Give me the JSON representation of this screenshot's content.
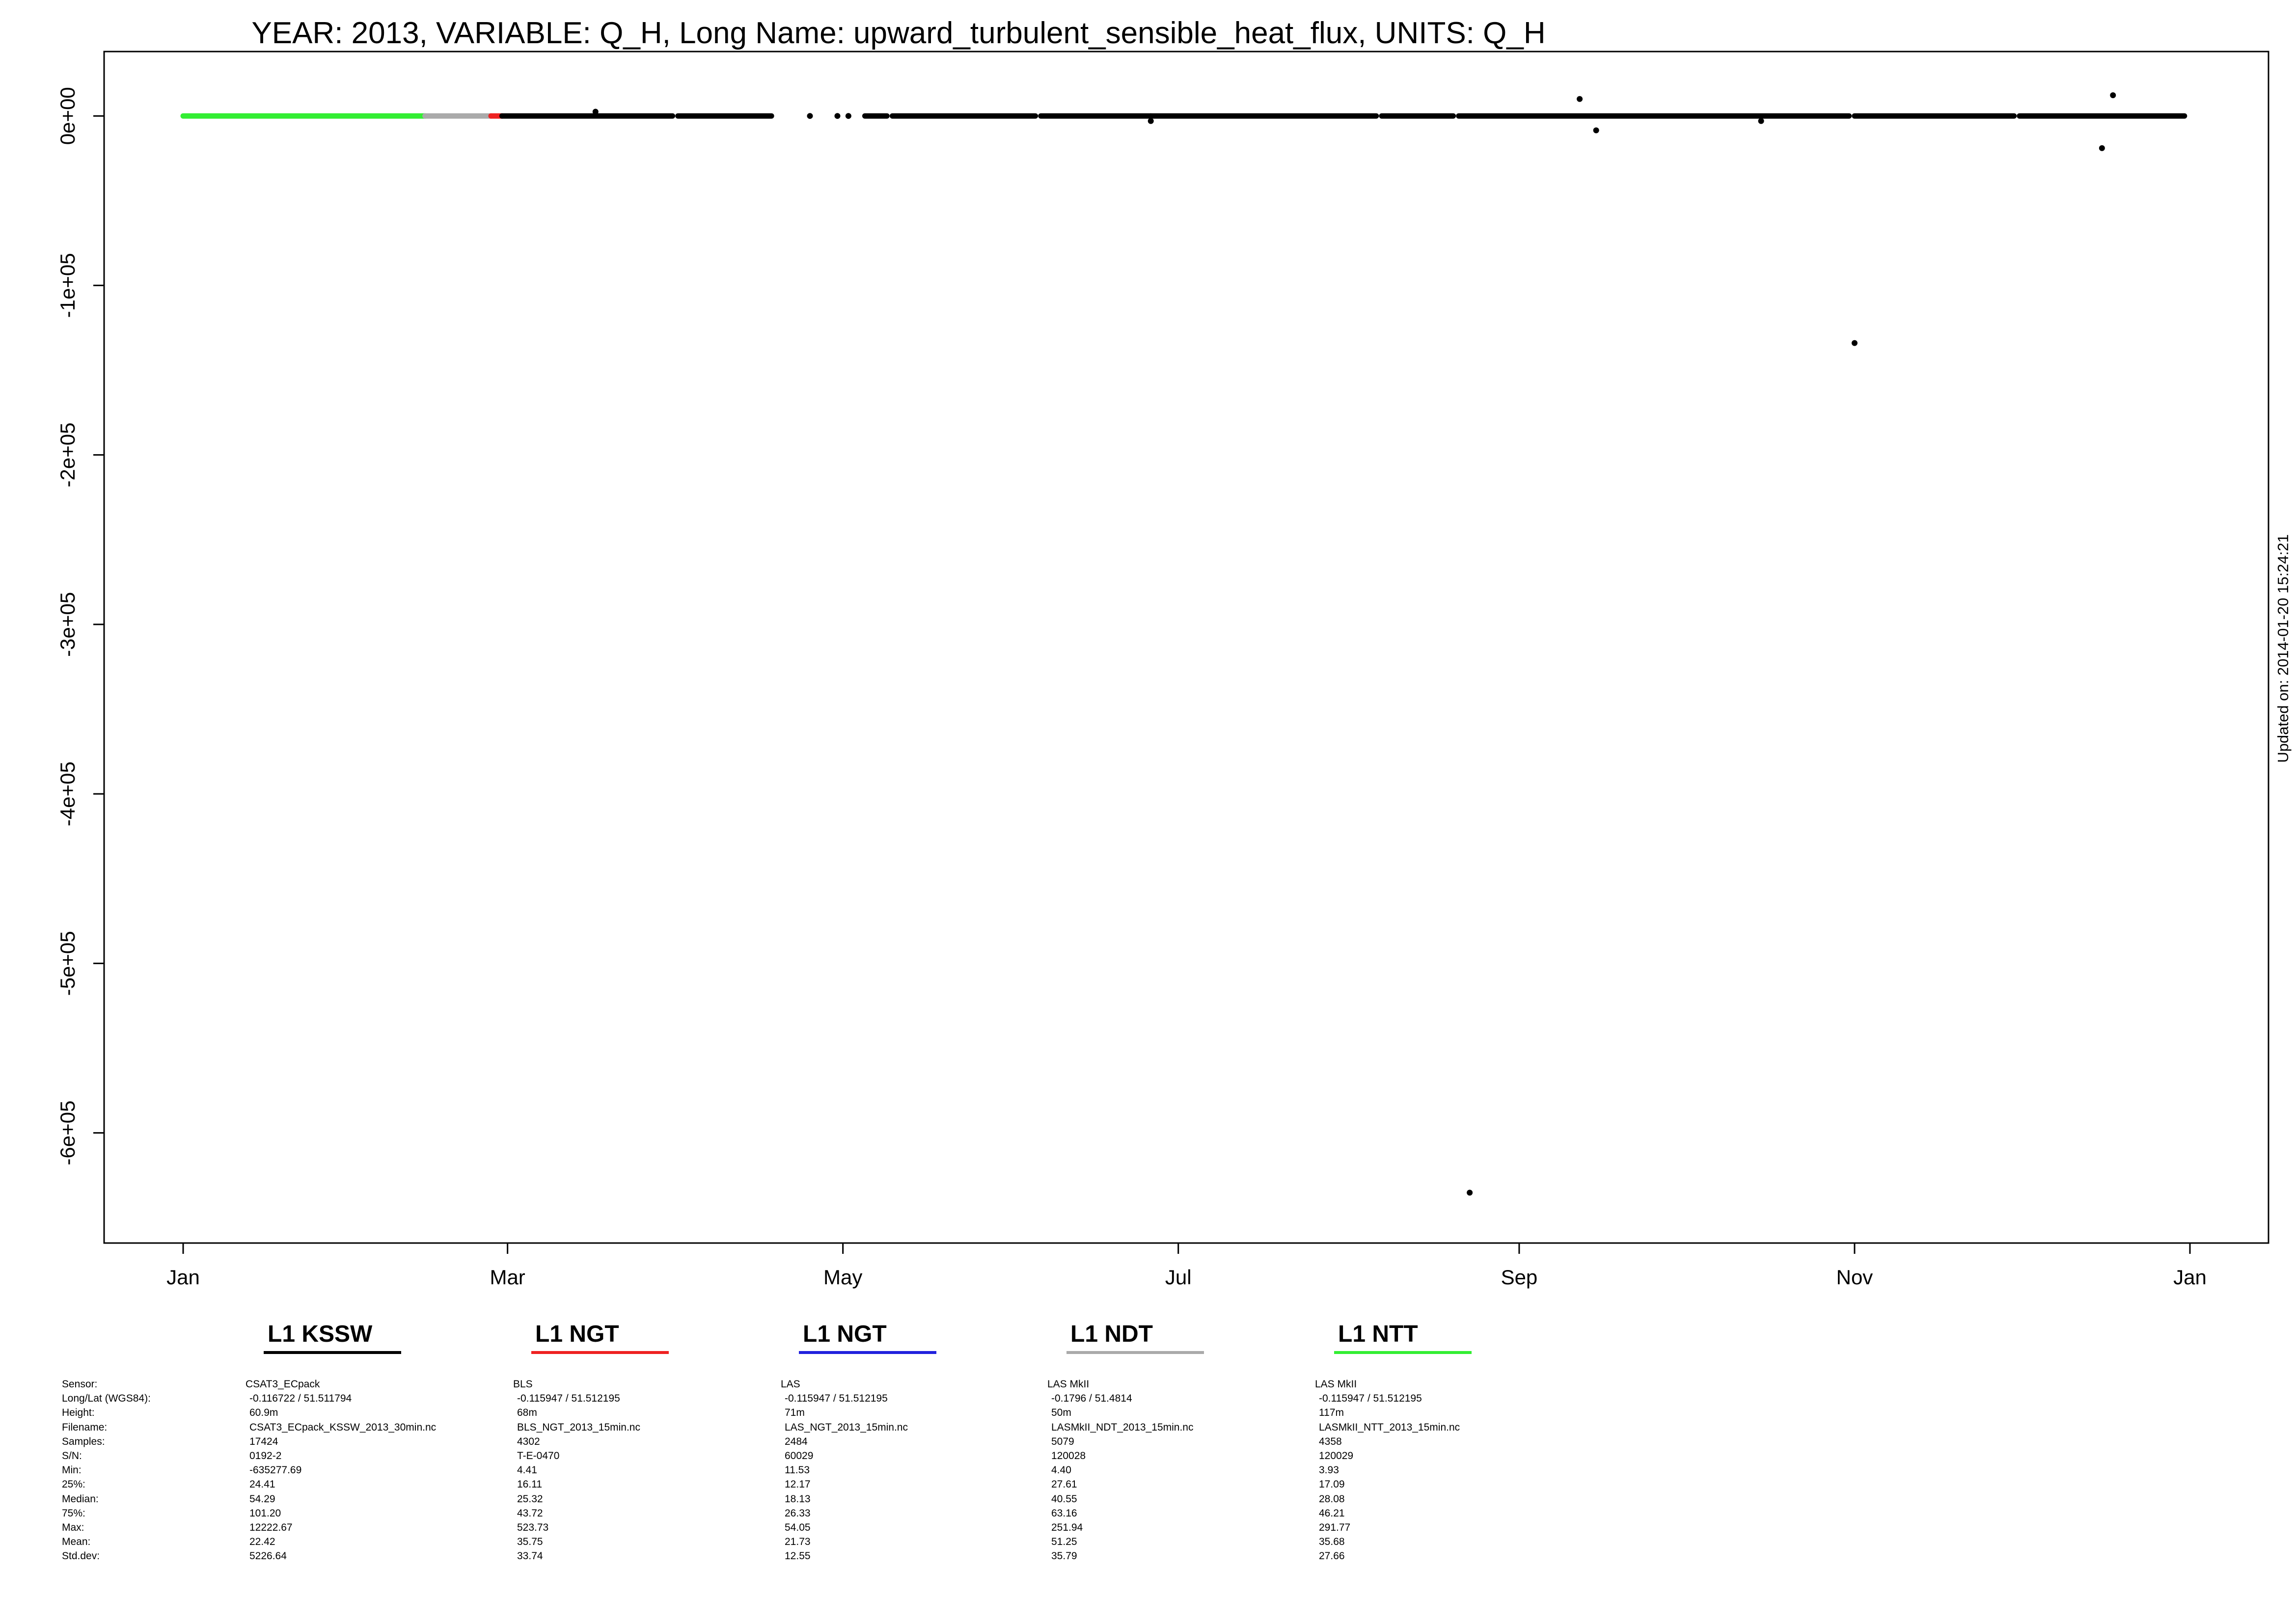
{
  "chart_data": {
    "type": "scatter",
    "title": "YEAR: 2013, VARIABLE: Q_H, Long Name: upward_turbulent_sensible_heat_flux, UNITS: Q_H",
    "xlabel": "",
    "ylabel": "",
    "x_range": [
      "2013-01-01",
      "2014-01-01"
    ],
    "ylim": [
      -665000,
      38000
    ],
    "y_ticks": [
      0,
      -100000,
      -200000,
      -300000,
      -400000,
      -500000,
      -600000
    ],
    "y_tick_labels": [
      "0e+00",
      "-1e+05",
      "-2e+05",
      "-3e+05",
      "-4e+05",
      "-5e+05",
      "-6e+05"
    ],
    "x_ticks": [
      "2013-01-01",
      "2013-03-01",
      "2013-05-01",
      "2013-07-01",
      "2013-09-01",
      "2013-11-01",
      "2014-01-01"
    ],
    "x_tick_labels": [
      "Jan",
      "Mar",
      "May",
      "Jul",
      "Sep",
      "Nov",
      "Jan"
    ],
    "grid": false,
    "series": [
      {
        "name": "L1 NTT",
        "color": "#33ee33",
        "segments": [
          {
            "start": "2013-01-01",
            "end": "2013-02-14",
            "y": 0
          }
        ]
      },
      {
        "name": "L1 NDT",
        "color": "#aaaaaa",
        "segments": [
          {
            "start": "2013-02-14",
            "end": "2013-02-26",
            "y": 0
          }
        ]
      },
      {
        "name": "L1 NGT",
        "color": "#ee2222",
        "segments": [
          {
            "start": "2013-02-26",
            "end": "2013-02-28",
            "y": 0
          }
        ]
      },
      {
        "name": "L1 KSSW",
        "color": "#000000",
        "segments": [
          {
            "start": "2013-02-28",
            "end": "2013-03-31",
            "y": 0
          },
          {
            "start": "2013-04-01",
            "end": "2013-04-18",
            "y": 0
          },
          {
            "start": "2013-05-05",
            "end": "2013-05-09",
            "y": 0
          },
          {
            "start": "2013-05-10",
            "end": "2013-06-05",
            "y": 0
          },
          {
            "start": "2013-06-06",
            "end": "2013-06-26",
            "y": 0
          },
          {
            "start": "2013-06-26",
            "end": "2013-08-06",
            "y": 0
          },
          {
            "start": "2013-08-07",
            "end": "2013-08-20",
            "y": 0
          },
          {
            "start": "2013-08-21",
            "end": "2013-10-31",
            "y": 0
          },
          {
            "start": "2013-11-01",
            "end": "2013-11-30",
            "y": 0
          },
          {
            "start": "2013-12-01",
            "end": "2013-12-31",
            "y": 0
          }
        ],
        "points": [
          {
            "x": "2013-03-17",
            "y": 2500
          },
          {
            "x": "2013-04-25",
            "y": 0
          },
          {
            "x": "2013-04-30",
            "y": 0
          },
          {
            "x": "2013-05-02",
            "y": 0
          },
          {
            "x": "2013-06-26",
            "y": -3000
          },
          {
            "x": "2013-08-23",
            "y": -635277.69
          },
          {
            "x": "2013-09-12",
            "y": 10000
          },
          {
            "x": "2013-09-15",
            "y": -8500
          },
          {
            "x": "2013-10-15",
            "y": -3000
          },
          {
            "x": "2013-11-01",
            "y": -134000
          },
          {
            "x": "2013-12-16",
            "y": -19000
          },
          {
            "x": "2013-12-18",
            "y": 12222.67
          }
        ]
      }
    ]
  },
  "legend": [
    {
      "label": "L1 KSSW",
      "color": "#000000"
    },
    {
      "label": "L1 NGT",
      "color": "#ee2222"
    },
    {
      "label": "L1 NGT",
      "color": "#2222dd"
    },
    {
      "label": "L1 NDT",
      "color": "#aaaaaa"
    },
    {
      "label": "L1 NTT",
      "color": "#33ee33"
    }
  ],
  "stats": {
    "row_labels": [
      "Sensor:",
      "Long/Lat (WGS84):",
      "Height:",
      "Filename:",
      "Samples:",
      "S/N:",
      "Min:",
      "25%:",
      "Median:",
      "75%:",
      "Max:",
      "Mean:",
      "Std.dev:"
    ],
    "columns": [
      [
        "CSAT3_ECpack",
        "-0.116722 / 51.511794",
        "60.9m",
        "CSAT3_ECpack_KSSW_2013_30min.nc",
        "17424",
        "0192-2",
        "-635277.69",
        "24.41",
        "54.29",
        "101.20",
        "12222.67",
        "22.42",
        "5226.64"
      ],
      [
        "BLS",
        "-0.115947 / 51.512195",
        "68m",
        "BLS_NGT_2013_15min.nc",
        "4302",
        "T-E-0470",
        "4.41",
        "16.11",
        "25.32",
        "43.72",
        "523.73",
        "35.75",
        "33.74"
      ],
      [
        "LAS",
        "-0.115947 / 51.512195",
        "71m",
        "LAS_NGT_2013_15min.nc",
        "2484",
        "60029",
        "11.53",
        "12.17",
        "18.13",
        "26.33",
        "54.05",
        "21.73",
        "12.55"
      ],
      [
        "LAS MkII",
        "-0.1796 / 51.4814",
        "50m",
        "LASMkII_NDT_2013_15min.nc",
        "5079",
        "120028",
        "4.40",
        "27.61",
        "40.55",
        "63.16",
        "251.94",
        "51.25",
        "35.79"
      ],
      [
        "LAS MkII",
        "-0.115947 / 51.512195",
        "117m",
        "LASMkII_NTT_2013_15min.nc",
        "4358",
        "120029",
        "3.93",
        "17.09",
        "28.08",
        "46.21",
        "291.77",
        "35.68",
        "27.66"
      ]
    ]
  },
  "updated_text": "Updated on: 2014-01-20 15:24:21"
}
